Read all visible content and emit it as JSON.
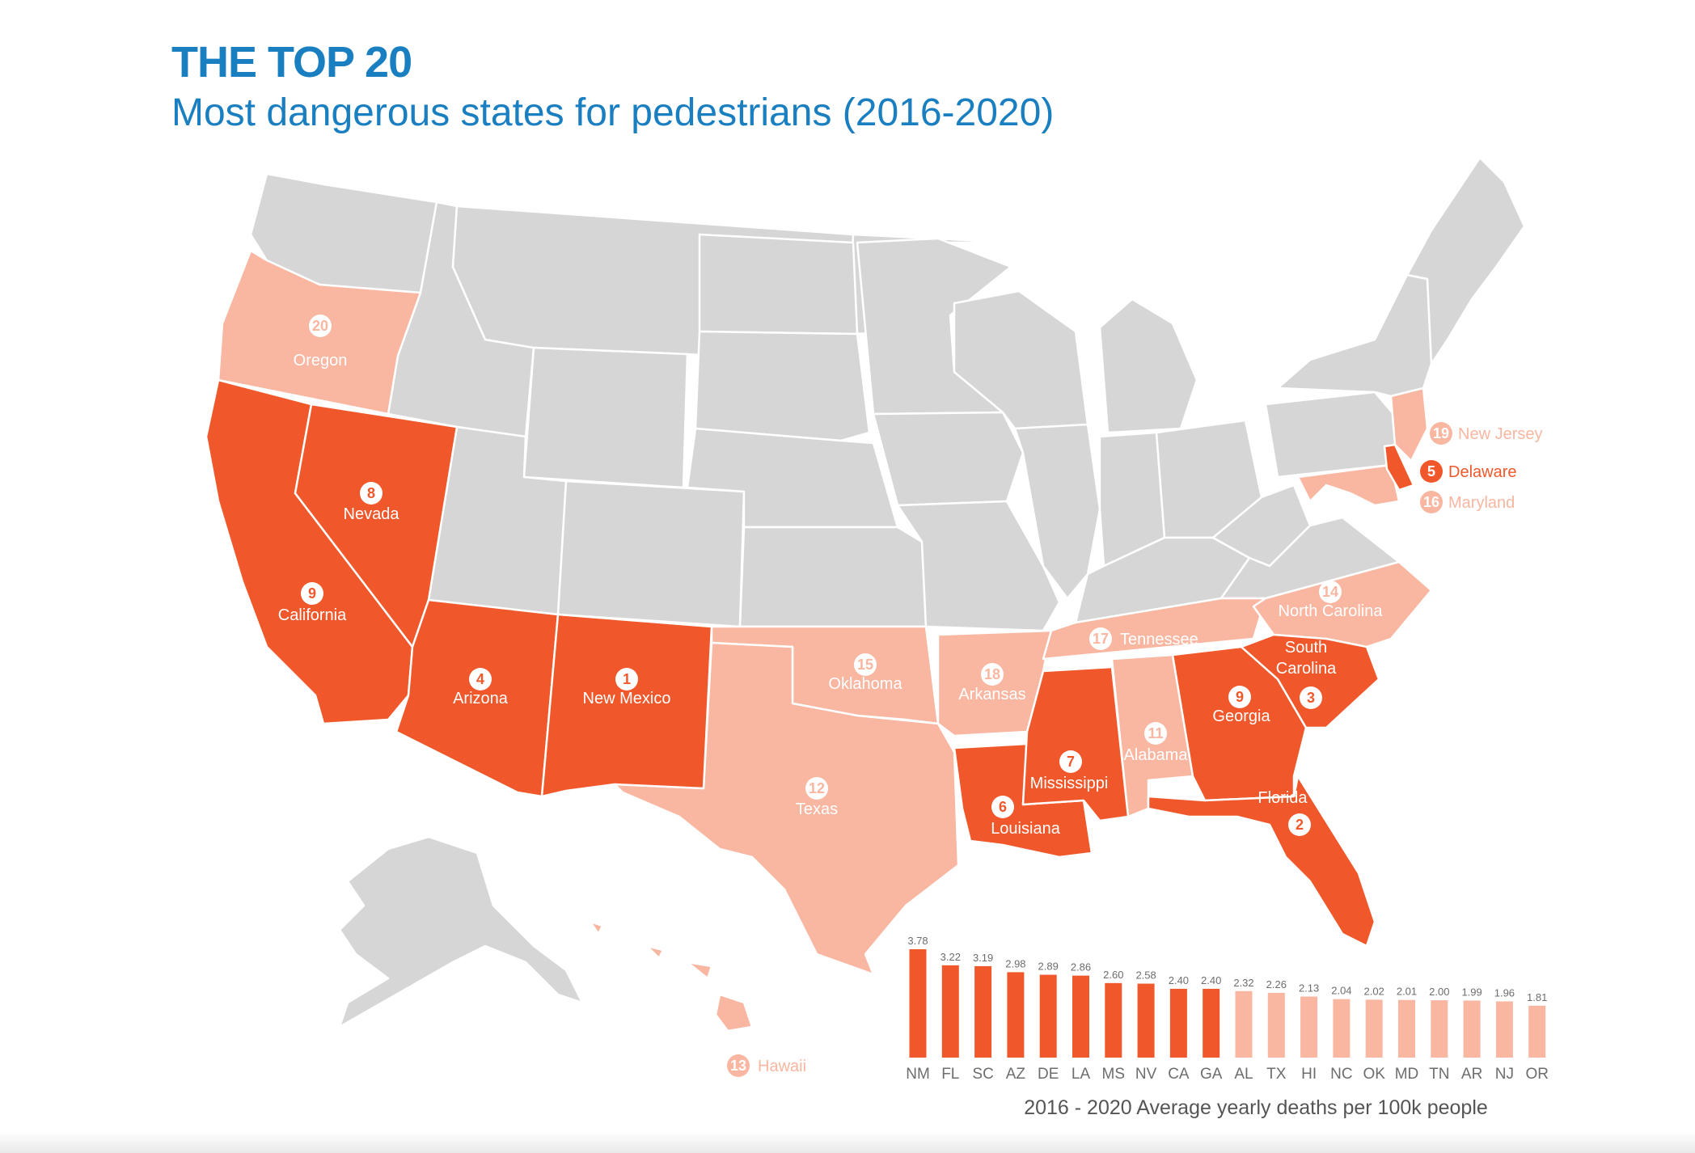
{
  "header": {
    "title": "THE TOP 20",
    "subtitle": "Most dangerous states for pedestrians (2016-2020)"
  },
  "colors": {
    "title": "#1a7fc1",
    "top_tier": "#f0582b",
    "second_tier": "#f9b6a0",
    "other_state": "#d6d6d6",
    "border": "#ffffff",
    "bar_value_text": "#6d6d6d",
    "axis_text": "#6d6d6d",
    "caption_text": "#555555"
  },
  "map": {
    "ranked_states": [
      {
        "rank": "1",
        "name": "New Mexico",
        "tier": "top"
      },
      {
        "rank": "2",
        "name": "Florida",
        "tier": "top"
      },
      {
        "rank": "3",
        "name": "South Carolina",
        "tier": "top"
      },
      {
        "rank": "4",
        "name": "Arizona",
        "tier": "top"
      },
      {
        "rank": "5",
        "name": "Delaware",
        "tier": "top"
      },
      {
        "rank": "6",
        "name": "Louisiana",
        "tier": "top"
      },
      {
        "rank": "7",
        "name": "Mississippi",
        "tier": "top"
      },
      {
        "rank": "8",
        "name": "Nevada",
        "tier": "top"
      },
      {
        "rank": "9",
        "name": "California",
        "tier": "top"
      },
      {
        "rank": "9",
        "name": "Georgia",
        "tier": "top"
      },
      {
        "rank": "11",
        "name": "Alabama",
        "tier": "second"
      },
      {
        "rank": "12",
        "name": "Texas",
        "tier": "second"
      },
      {
        "rank": "13",
        "name": "Hawaii",
        "tier": "second"
      },
      {
        "rank": "14",
        "name": "North Carolina",
        "tier": "second"
      },
      {
        "rank": "15",
        "name": "Oklahoma",
        "tier": "second"
      },
      {
        "rank": "16",
        "name": "Maryland",
        "tier": "second"
      },
      {
        "rank": "17",
        "name": "Tennessee",
        "tier": "second"
      },
      {
        "rank": "18",
        "name": "Arkansas",
        "tier": "second"
      },
      {
        "rank": "19",
        "name": "New Jersey",
        "tier": "second"
      },
      {
        "rank": "20",
        "name": "Oregon",
        "tier": "second"
      }
    ]
  },
  "chart_data": {
    "type": "bar",
    "categories": [
      "NM",
      "FL",
      "SC",
      "AZ",
      "DE",
      "LA",
      "MS",
      "NV",
      "CA",
      "GA",
      "AL",
      "TX",
      "HI",
      "NC",
      "OK",
      "MD",
      "TN",
      "AR",
      "NJ",
      "OR"
    ],
    "values": [
      3.78,
      3.22,
      3.19,
      2.98,
      2.89,
      2.86,
      2.6,
      2.58,
      2.4,
      2.4,
      2.32,
      2.26,
      2.13,
      2.04,
      2.02,
      2.01,
      2.0,
      1.99,
      1.96,
      1.81
    ],
    "value_labels": [
      "3.78",
      "3.22",
      "3.19",
      "2.98",
      "2.89",
      "2.86",
      "2.60",
      "2.58",
      "2.40",
      "2.40",
      "2.32",
      "2.26",
      "2.13",
      "2.04",
      "2.02",
      "2.01",
      "2.00",
      "1.99",
      "1.96",
      "1.81"
    ],
    "tiers": [
      "top",
      "top",
      "top",
      "top",
      "top",
      "top",
      "top",
      "top",
      "top",
      "top",
      "second",
      "second",
      "second",
      "second",
      "second",
      "second",
      "second",
      "second",
      "second",
      "second"
    ],
    "xlabel": "2016 - 2020 Average yearly deaths per 100k people",
    "ylim": [
      0,
      3.78
    ]
  }
}
